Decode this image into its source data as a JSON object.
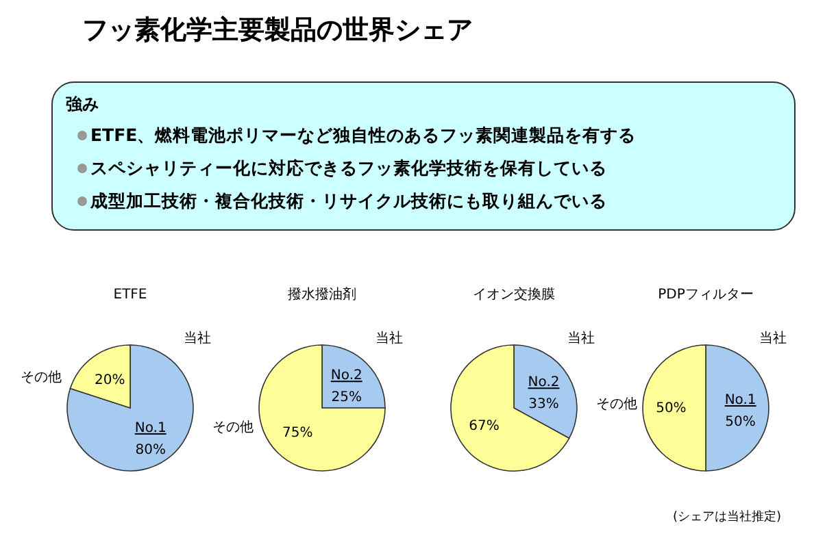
{
  "chart_data": [
    {
      "type": "other",
      "title": "フッ素化学主要製品の世界シェア",
      "subtitle": "強み",
      "annotations": [
        "ETFE、燃料電池ポリマーなど独自性のあるフッ素関連製品を有する",
        "スペシャリティー化に対応できるフッ素化学技術を保有している",
        "成型加工技術・複合化技術・リサイクル技術にも取り組んでいる"
      ]
    },
    {
      "type": "pie",
      "title": "ETFE",
      "categories": [
        "当社",
        "その他"
      ],
      "values": [
        80,
        20
      ],
      "colors": [
        "#a6caf0",
        "#ffff99"
      ],
      "value_labels": [
        "80%",
        "20%"
      ],
      "annotations": [
        "No.1"
      ]
    },
    {
      "type": "pie",
      "title": "撥水撥油剤",
      "categories": [
        "当社",
        "その他"
      ],
      "values": [
        25,
        75
      ],
      "colors": [
        "#a6caf0",
        "#ffff99"
      ],
      "value_labels": [
        "25%",
        "75%"
      ],
      "annotations": [
        "No.2"
      ]
    },
    {
      "type": "pie",
      "title": "イオン交換膜",
      "categories": [
        "当社",
        null
      ],
      "values": [
        33,
        67
      ],
      "colors": [
        "#a6caf0",
        "#ffff99"
      ],
      "value_labels": [
        "33%",
        "67%"
      ],
      "annotations": [
        "No.2"
      ]
    },
    {
      "type": "pie",
      "title": "PDPフィルター",
      "categories": [
        "当社",
        "その他"
      ],
      "values": [
        50,
        50
      ],
      "colors": [
        "#a6caf0",
        "#ffff99"
      ],
      "value_labels": [
        "50%",
        "50%"
      ],
      "annotations": [
        "No.1",
        "(シェアは当社推定)"
      ]
    }
  ]
}
